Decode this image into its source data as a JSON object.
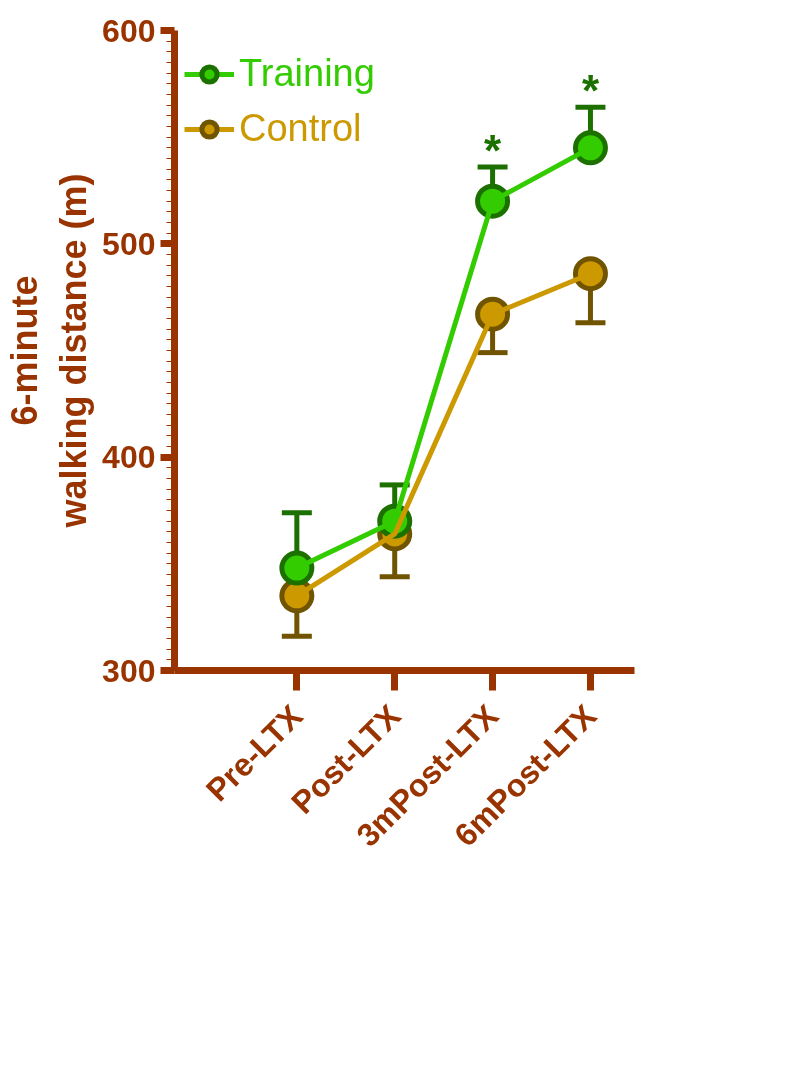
{
  "chart_data": {
    "type": "line",
    "ylabel": "6-minute\nwalking distance (m)",
    "categories": [
      "Pre-LTX",
      "Post-LTX",
      "3mPost-LTX",
      "6mPost-LTX"
    ],
    "series": [
      {
        "name": "Training",
        "color": "#33cc00",
        "values": [
          348,
          370,
          520,
          545
        ],
        "errors": [
          [
            348,
            374
          ],
          [
            370,
            387
          ],
          [
            520,
            536
          ],
          [
            545,
            564
          ]
        ]
      },
      {
        "name": "Control",
        "color": "#cc9900",
        "values": [
          335,
          364,
          467,
          486
        ],
        "errors": [
          [
            316,
            335
          ],
          [
            344,
            364
          ],
          [
            449,
            467
          ],
          [
            463,
            486
          ]
        ]
      }
    ],
    "ylim": [
      300,
      600
    ],
    "yticks": [
      300,
      400,
      500,
      600
    ],
    "annotations": [
      {
        "text": "*",
        "x": "3mPost-LTX",
        "y": 536
      },
      {
        "text": "*",
        "x": "6mPost-LTX",
        "y": 564
      }
    ],
    "grid": false,
    "legend": "top left",
    "marker": "circle",
    "line_style": "solid"
  }
}
